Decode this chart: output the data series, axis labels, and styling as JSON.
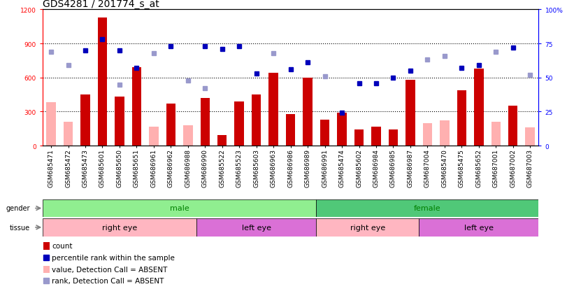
{
  "title": "GDS4281 / 201774_s_at",
  "samples": [
    "GSM685471",
    "GSM685472",
    "GSM685473",
    "GSM685601",
    "GSM685650",
    "GSM685651",
    "GSM686961",
    "GSM686962",
    "GSM686988",
    "GSM686990",
    "GSM685522",
    "GSM685523",
    "GSM685603",
    "GSM686963",
    "GSM686986",
    "GSM686989",
    "GSM686991",
    "GSM685474",
    "GSM685602",
    "GSM686984",
    "GSM686985",
    "GSM686987",
    "GSM687004",
    "GSM685470",
    "GSM685475",
    "GSM685652",
    "GSM687001",
    "GSM687002",
    "GSM687003"
  ],
  "count_present": [
    0,
    0,
    450,
    1130,
    430,
    690,
    0,
    370,
    0,
    420,
    90,
    390,
    450,
    640,
    280,
    600,
    230,
    290,
    140,
    170,
    140,
    580,
    0,
    0,
    490,
    680,
    0,
    350,
    0
  ],
  "count_absent": [
    380,
    210,
    0,
    0,
    0,
    0,
    170,
    0,
    180,
    0,
    0,
    0,
    0,
    0,
    0,
    0,
    0,
    0,
    0,
    0,
    0,
    0,
    200,
    220,
    0,
    0,
    210,
    0,
    160
  ],
  "rank_present": [
    0,
    0,
    70,
    78,
    70,
    57,
    0,
    73,
    0,
    73,
    71,
    73,
    53,
    0,
    56,
    61,
    0,
    24,
    46,
    46,
    50,
    55,
    0,
    0,
    57,
    59,
    0,
    72,
    0
  ],
  "rank_absent": [
    69,
    59,
    0,
    0,
    45,
    0,
    68,
    0,
    48,
    42,
    0,
    0,
    0,
    68,
    0,
    0,
    51,
    0,
    0,
    0,
    0,
    0,
    63,
    66,
    0,
    0,
    69,
    0,
    52
  ],
  "gender_groups": [
    {
      "label": "male",
      "start": 0,
      "end": 16,
      "color": "#90ee90"
    },
    {
      "label": "female",
      "start": 16,
      "end": 29,
      "color": "#50c878"
    }
  ],
  "tissue_groups": [
    {
      "label": "right eye",
      "start": 0,
      "end": 9,
      "color": "#ffb6c1"
    },
    {
      "label": "left eye",
      "start": 9,
      "end": 16,
      "color": "#da70d6"
    },
    {
      "label": "right eye",
      "start": 16,
      "end": 22,
      "color": "#ffb6c1"
    },
    {
      "label": "left eye",
      "start": 22,
      "end": 29,
      "color": "#da70d6"
    }
  ],
  "ylim_left": [
    0,
    1200
  ],
  "ylim_right": [
    0,
    100
  ],
  "yticks_left": [
    0,
    300,
    600,
    900,
    1200
  ],
  "yticks_right": [
    0,
    25,
    50,
    75,
    100
  ],
  "bar_color_present": "#cc0000",
  "bar_color_absent": "#ffb0b0",
  "dot_color_present": "#0000bb",
  "dot_color_absent": "#9999cc",
  "background_color": "#ffffff",
  "title_fontsize": 10,
  "tick_fontsize": 6.5,
  "label_fontsize": 8,
  "legend_fontsize": 7.5
}
